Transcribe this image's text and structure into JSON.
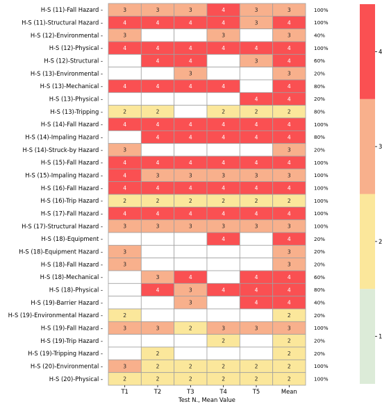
{
  "chart_data": {
    "type": "heatmap",
    "xlabel": "Test N., Mean Value",
    "columns": [
      "T1",
      "T2",
      "T3",
      "T4",
      "T5",
      "Mean"
    ],
    "rows": [
      {
        "label": "H-S (11)-Fall Hazard",
        "values": [
          3,
          3,
          3,
          4,
          3,
          3
        ],
        "pct": "100%"
      },
      {
        "label": "H-S (11)-Structural Hazard",
        "values": [
          4,
          4,
          4,
          4,
          3,
          4
        ],
        "pct": "100%"
      },
      {
        "label": "H-S (12)-Environmental",
        "values": [
          3,
          null,
          null,
          3,
          null,
          3
        ],
        "pct": "40%"
      },
      {
        "label": "H-S (12)-Physical",
        "values": [
          4,
          4,
          4,
          4,
          4,
          4
        ],
        "pct": "100%"
      },
      {
        "label": "H-S (12)-Structural",
        "values": [
          null,
          4,
          4,
          null,
          3,
          4
        ],
        "pct": "60%"
      },
      {
        "label": "H-S (13)-Environmental",
        "values": [
          null,
          null,
          3,
          null,
          null,
          3
        ],
        "pct": "20%"
      },
      {
        "label": "H-S (13)-Mechanical",
        "values": [
          4,
          4,
          4,
          4,
          null,
          4
        ],
        "pct": "80%"
      },
      {
        "label": "H-S (13)-Physical",
        "values": [
          null,
          null,
          null,
          null,
          4,
          4
        ],
        "pct": "20%"
      },
      {
        "label": "H-S (13)-Tripping",
        "values": [
          2,
          2,
          null,
          2,
          2,
          2
        ],
        "pct": "80%"
      },
      {
        "label": "H-S (14)-Fall Hazard",
        "values": [
          4,
          4,
          4,
          4,
          4,
          4
        ],
        "pct": "100%"
      },
      {
        "label": "H-S (14)-Impaling Hazard",
        "values": [
          null,
          4,
          4,
          4,
          4,
          4
        ],
        "pct": "80%"
      },
      {
        "label": "H-S (14)-Struck-by Hazard",
        "values": [
          3,
          null,
          null,
          null,
          null,
          3
        ],
        "pct": "20%"
      },
      {
        "label": "H-S (15)-Fall Hazard",
        "values": [
          4,
          4,
          4,
          4,
          4,
          4
        ],
        "pct": "100%"
      },
      {
        "label": "H-S (15)-Impaling Hazard",
        "values": [
          4,
          3,
          3,
          3,
          3,
          3
        ],
        "pct": "100%"
      },
      {
        "label": "H-S (16)-Fall Hazard",
        "values": [
          4,
          4,
          4,
          4,
          4,
          4
        ],
        "pct": "100%"
      },
      {
        "label": "H-S (16)-Trip Hazard",
        "values": [
          2,
          2,
          2,
          2,
          2,
          2
        ],
        "pct": "100%"
      },
      {
        "label": "H-S (17)-Fall Hazard",
        "values": [
          4,
          4,
          4,
          4,
          4,
          4
        ],
        "pct": "100%"
      },
      {
        "label": "H-S (17)-Structural Hazard",
        "values": [
          3,
          3,
          3,
          3,
          3,
          3
        ],
        "pct": "100%"
      },
      {
        "label": "H-S (18)-Equipment",
        "values": [
          null,
          null,
          null,
          4,
          null,
          4
        ],
        "pct": "20%"
      },
      {
        "label": "H-S (18)-Equipment Hazard",
        "values": [
          3,
          null,
          null,
          null,
          null,
          3
        ],
        "pct": "20%"
      },
      {
        "label": "H-S (18)-Fall Hazard",
        "values": [
          3,
          null,
          null,
          null,
          null,
          3
        ],
        "pct": "20%"
      },
      {
        "label": "H-S (18)-Mechanical",
        "values": [
          null,
          3,
          4,
          null,
          4,
          4
        ],
        "pct": "60%"
      },
      {
        "label": "H-S (18)-Physical",
        "values": [
          null,
          4,
          3,
          4,
          4,
          4
        ],
        "pct": "80%"
      },
      {
        "label": "H-S (19)-Barrier Hazard",
        "values": [
          null,
          null,
          3,
          null,
          4,
          4
        ],
        "pct": "40%"
      },
      {
        "label": "H-S (19)-Environmental Hazard",
        "values": [
          2,
          null,
          null,
          null,
          null,
          2
        ],
        "pct": "20%"
      },
      {
        "label": "H-S (19)-Fall Hazard",
        "values": [
          3,
          3,
          2,
          3,
          3,
          3
        ],
        "pct": "100%"
      },
      {
        "label": "H-S (19)-Trip Hazard",
        "values": [
          null,
          null,
          null,
          2,
          null,
          2
        ],
        "pct": "20%"
      },
      {
        "label": "H-S (19)-Tripping Hazard",
        "values": [
          null,
          2,
          null,
          null,
          null,
          2
        ],
        "pct": "20%"
      },
      {
        "label": "H-S (20)-Environmental",
        "values": [
          3,
          2,
          2,
          2,
          2,
          2
        ],
        "pct": "100%"
      },
      {
        "label": "H-S (20)-Physical",
        "values": [
          2,
          2,
          2,
          2,
          2,
          2
        ],
        "pct": "100%"
      }
    ],
    "colorbar": {
      "ticks": [
        1,
        2,
        3,
        4
      ],
      "range": [
        0.5,
        4.5
      ],
      "colors": {
        "1": "#dcebd8",
        "2": "#fbe79b",
        "3": "#f8b08c",
        "4": "#fa5052"
      }
    },
    "empty_cell_color": "#ffffff",
    "grid_color": "#a0a0a0"
  }
}
